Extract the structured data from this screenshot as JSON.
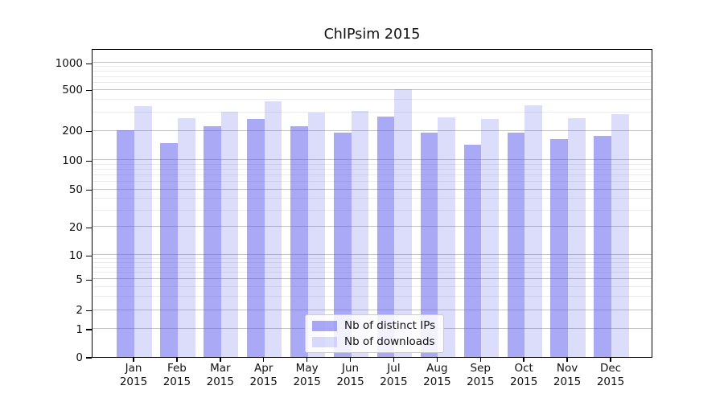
{
  "title": "ChIPsim 2015",
  "chart_data": {
    "type": "bar",
    "title": "ChIPsim 2015",
    "categories": [
      "Jan",
      "Feb",
      "Mar",
      "Apr",
      "May",
      "Jun",
      "Jul",
      "Aug",
      "Sep",
      "Oct",
      "Nov",
      "Dec"
    ],
    "category_year": "2015",
    "series": [
      {
        "name": "Nb of distinct IPs",
        "color": "#a9a9f3",
        "rgba": "rgba(90,90,235,0.52)",
        "values": [
          204,
          150,
          220,
          260,
          220,
          192,
          277,
          192,
          144,
          190,
          166,
          176
        ]
      },
      {
        "name": "Nb of downloads",
        "color": "#dcdcf8",
        "rgba": "rgba(90,90,235,0.21)",
        "values": [
          346,
          264,
          309,
          386,
          301,
          312,
          507,
          270,
          262,
          352,
          265,
          289
        ]
      }
    ],
    "yscale": "symlog",
    "y_ticks": [
      0,
      1,
      2,
      5,
      10,
      20,
      50,
      100,
      200,
      500,
      1000
    ],
    "y_minor_ticks": [
      3,
      4,
      6,
      7,
      8,
      9,
      30,
      40,
      60,
      70,
      80,
      90,
      300,
      400,
      600,
      700,
      800,
      900
    ],
    "ylim": [
      0,
      1200
    ],
    "grid": true,
    "legend_position": "lower center",
    "colors": {
      "grid_major": "#c3c3c3",
      "grid_minor": "#ebebeb",
      "spine": "#000000",
      "text": "#111111",
      "legend_border": "#cccccc"
    }
  },
  "legend": {
    "items": [
      {
        "label": "Nb of distinct IPs"
      },
      {
        "label": "Nb of downloads"
      }
    ]
  }
}
